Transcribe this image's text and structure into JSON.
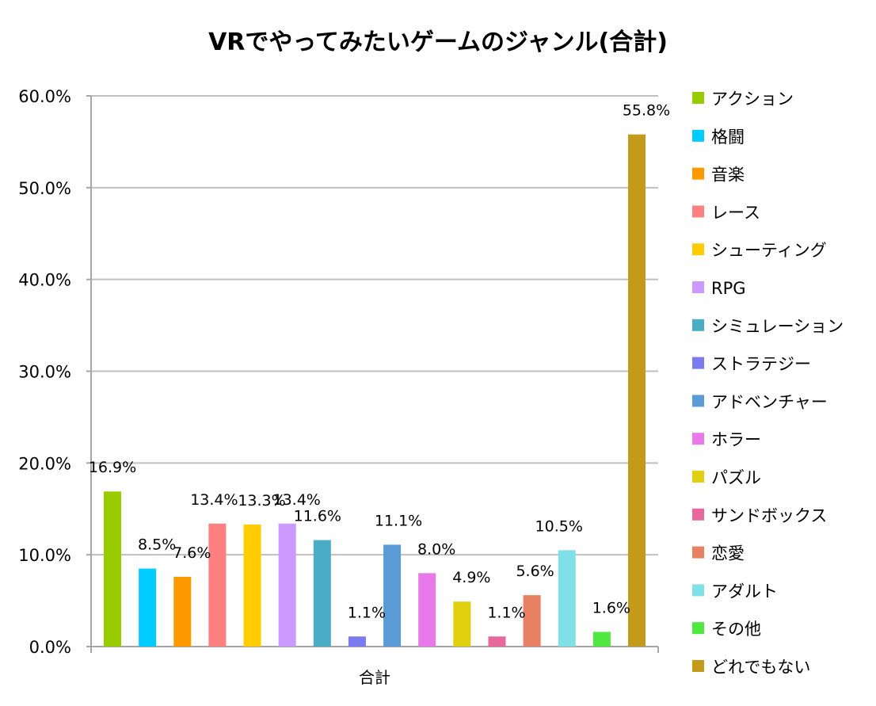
{
  "chart_data": {
    "type": "bar",
    "title": "VRでやってみたいゲームのジャンル(合計)",
    "categories": [
      "合計"
    ],
    "xlabel": "",
    "ylabel": "",
    "ylim": [
      0,
      60
    ],
    "yticks": [
      "0.0%",
      "10.0%",
      "20.0%",
      "30.0%",
      "40.0%",
      "50.0%",
      "60.0%"
    ],
    "ytick_values": [
      0,
      10,
      20,
      30,
      40,
      50,
      60
    ],
    "grid": true,
    "legend_position": "right",
    "series": [
      {
        "name": "アクション",
        "value": 16.9,
        "label": "16.9%",
        "color": "#99CC00"
      },
      {
        "name": "格闘",
        "value": 8.5,
        "label": "8.5%",
        "color": "#00CCFF"
      },
      {
        "name": "音楽",
        "value": 7.6,
        "label": "7.6%",
        "color": "#FF9900"
      },
      {
        "name": "レース",
        "value": 13.4,
        "label": "13.4%",
        "color": "#FF8080"
      },
      {
        "name": "シューティング",
        "value": 13.3,
        "label": "13.3%",
        "color": "#FFCC00"
      },
      {
        "name": "RPG",
        "value": 13.4,
        "label": "13.4%",
        "color": "#CC99FF"
      },
      {
        "name": "シミュレーション",
        "value": 11.6,
        "label": "11.6%",
        "color": "#4BACC6"
      },
      {
        "name": "ストラテジー",
        "value": 1.1,
        "label": "1.1%",
        "color": "#7B7BF0"
      },
      {
        "name": "アドベンチャー",
        "value": 11.1,
        "label": "11.1%",
        "color": "#5B9BD5"
      },
      {
        "name": "ホラー",
        "value": 8.0,
        "label": "8.0%",
        "color": "#E879E8"
      },
      {
        "name": "パズル",
        "value": 4.9,
        "label": "4.9%",
        "color": "#E0D010"
      },
      {
        "name": "サンドボックス",
        "value": 1.1,
        "label": "1.1%",
        "color": "#E8689C"
      },
      {
        "name": "恋愛",
        "value": 5.6,
        "label": "5.6%",
        "color": "#E88064"
      },
      {
        "name": "アダルト",
        "value": 10.5,
        "label": "10.5%",
        "color": "#80E0E8"
      },
      {
        "name": "その他",
        "value": 1.6,
        "label": "1.6%",
        "color": "#50E840"
      },
      {
        "name": "どれでもない",
        "value": 55.8,
        "label": "55.8%",
        "color": "#C49A1A"
      }
    ]
  }
}
